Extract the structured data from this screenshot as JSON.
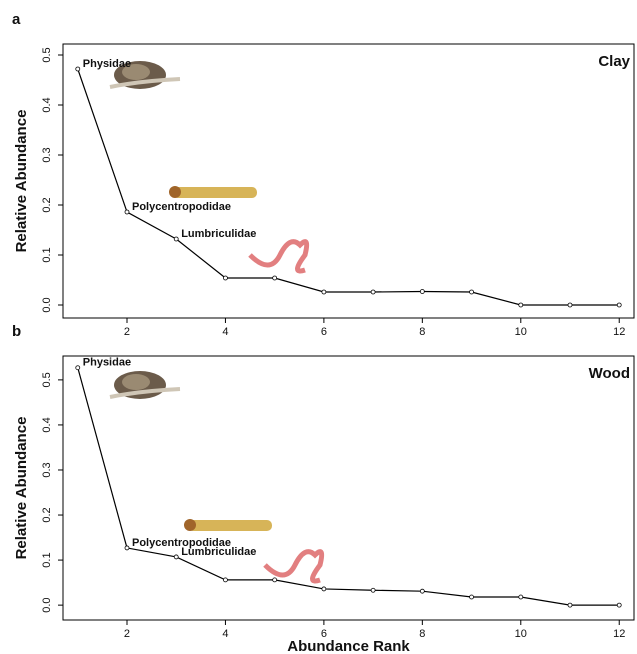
{
  "chart_data": [
    {
      "type": "line",
      "tag": "a",
      "panel_label": "Clay",
      "ylabel": "Relative Abundance",
      "x": [
        1,
        2,
        3,
        4,
        5,
        6,
        7,
        8,
        9,
        10,
        11,
        12
      ],
      "values": [
        0.472,
        0.186,
        0.132,
        0.054,
        0.054,
        0.026,
        0.026,
        0.027,
        0.026,
        0,
        0,
        0
      ],
      "point_labels": [
        "Physidae",
        "Polycentropodidae",
        "Lumbriculidae",
        null,
        null,
        null,
        null,
        null,
        null,
        null,
        null,
        null
      ],
      "color": "#000000",
      "xlim": [
        0.7,
        12.3
      ],
      "xticks": [
        2,
        4,
        6,
        8,
        10,
        12
      ],
      "ylim": [
        -0.026,
        0.522
      ],
      "yticks": [
        {
          "value": 0,
          "label": "0.0"
        },
        0.1,
        0.2,
        0.3,
        0.4,
        0.5
      ]
    },
    {
      "type": "line",
      "tag": "b",
      "panel_label": "Wood",
      "ylabel": "Relative Abundance",
      "xlabel": "Abundance Rank",
      "x": [
        1,
        2,
        3,
        4,
        5,
        6,
        7,
        8,
        9,
        10,
        11,
        12
      ],
      "values": [
        0.527,
        0.127,
        0.107,
        0.056,
        0.056,
        0.036,
        0.033,
        0.031,
        0.018,
        0.018,
        0,
        0
      ],
      "point_labels": [
        "Physidae",
        "Polycentropodidae",
        "Lumbriculidae",
        null,
        null,
        null,
        null,
        null,
        null,
        null,
        null,
        null
      ],
      "color": "#000000",
      "xlim": [
        0.7,
        12.3
      ],
      "xticks": [
        2,
        4,
        6,
        8,
        10,
        12
      ],
      "ylim": [
        -0.033,
        0.553
      ],
      "yticks": [
        {
          "value": 0,
          "label": "0.0"
        },
        0.1,
        0.2,
        0.3,
        0.4,
        0.5
      ]
    }
  ]
}
